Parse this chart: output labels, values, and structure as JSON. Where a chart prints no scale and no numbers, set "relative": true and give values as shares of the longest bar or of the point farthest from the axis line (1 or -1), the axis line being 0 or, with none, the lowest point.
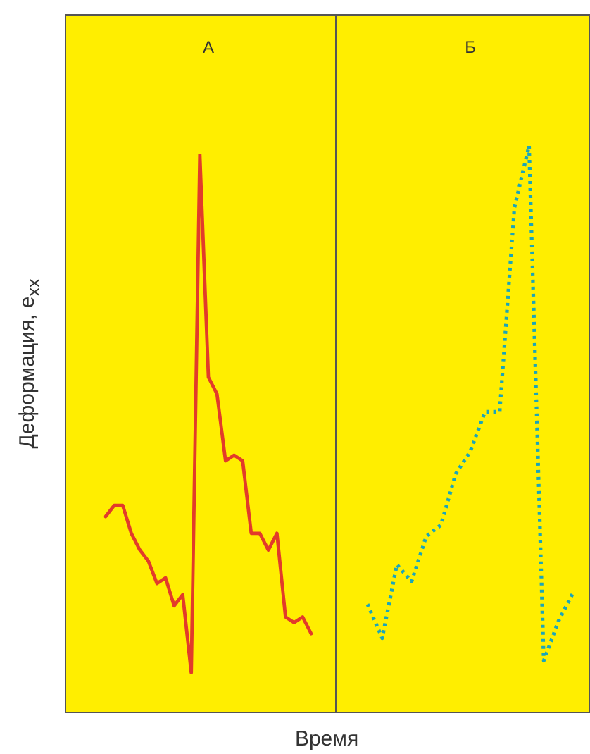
{
  "chart_data": [
    {
      "type": "line",
      "title": "А",
      "ylabel": "Деформация, e$_{xx}$",
      "xlabel": "Время",
      "relative": true,
      "tick_labels": false,
      "line_style": "solid",
      "categories": [
        null,
        null,
        null,
        null,
        null,
        null,
        null,
        null,
        null,
        null,
        null,
        null,
        null,
        null,
        null,
        null,
        null,
        null,
        null,
        null,
        null,
        null,
        null,
        null,
        null
      ],
      "series": [
        {
          "color": "#e23b2a",
          "values": [
            0.35,
            0.37,
            0.37,
            0.32,
            0.29,
            0.27,
            0.23,
            0.24,
            0.19,
            0.21,
            0.07,
            1,
            0.6,
            0.57,
            0.45,
            0.46,
            0.45,
            0.32,
            0.32,
            0.29,
            0.32,
            0.17,
            0.16,
            0.17,
            0.14
          ]
        }
      ]
    },
    {
      "type": "line",
      "title": "Б",
      "relative": true,
      "tick_labels": false,
      "line_style": "dotted",
      "categories": [
        null,
        null,
        null,
        null,
        null,
        null,
        null,
        null,
        null,
        null,
        null,
        null,
        null,
        null,
        null
      ],
      "series": [
        {
          "color": "#1ba6b8",
          "values": [
            0.19,
            0.13,
            0.26,
            0.23,
            0.31,
            0.33,
            0.42,
            0.46,
            0.53,
            0.53,
            0.89,
            1,
            0.09,
            0.16,
            0.21
          ]
        }
      ]
    }
  ]
}
